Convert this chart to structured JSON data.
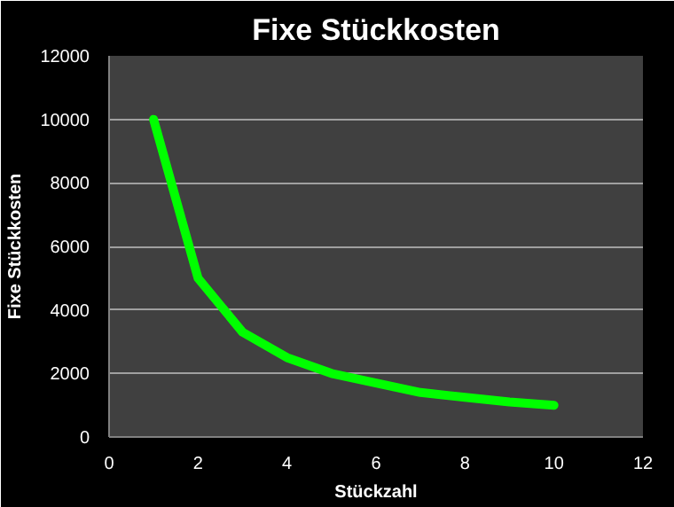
{
  "chart_data": {
    "type": "line",
    "title": "Fixe Stückkosten",
    "xlabel": "Stückzahl",
    "ylabel": "Fixe Stückkosten",
    "x": [
      1,
      2,
      3,
      4,
      5,
      6,
      7,
      8,
      9,
      10
    ],
    "series": [
      {
        "color": "#00ff00",
        "values": [
          10000,
          5000,
          3300,
          2500,
          2000,
          1700,
          1400,
          1250,
          1100,
          1000
        ]
      }
    ],
    "xlim": [
      0,
      12
    ],
    "xticks": [
      0,
      2,
      4,
      6,
      8,
      10,
      12
    ],
    "ylim": [
      0,
      12000
    ],
    "yticks": [
      0,
      2000,
      4000,
      6000,
      8000,
      10000,
      12000
    ],
    "grid": "y",
    "marker": "none",
    "line_style": "solid"
  }
}
